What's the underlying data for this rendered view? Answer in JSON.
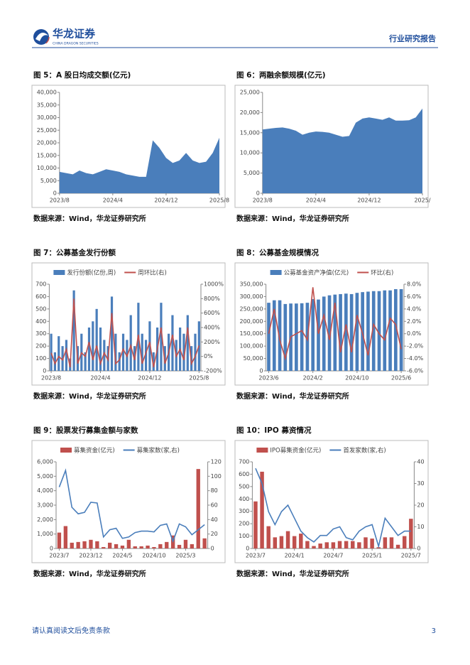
{
  "header": {
    "logo_cn": "华龙证券",
    "logo_en": "CHINA DRAGON SECURITIES",
    "report_type": "行业研究报告"
  },
  "chart_data": [
    {
      "type": "area",
      "title": "图 5：A 股日均成交额(亿元)",
      "source": "数据来源：Wind，华龙证券研究所",
      "color": "#4a7ebb",
      "categories": [
        "2023/8",
        null,
        null,
        null,
        null,
        null,
        null,
        null,
        "2024/4",
        null,
        null,
        null,
        null,
        null,
        null,
        null,
        "2024/12",
        null,
        null,
        null,
        null,
        null,
        null,
        null,
        "2025/8"
      ],
      "values": [
        8500,
        8000,
        7500,
        9000,
        8000,
        7500,
        8500,
        9500,
        9000,
        8500,
        7500,
        7000,
        6500,
        6500,
        21000,
        18000,
        14000,
        12000,
        13000,
        16000,
        13000,
        12000,
        12500,
        16000,
        22000
      ],
      "ylim": [
        0,
        40000
      ],
      "yticks": [
        0,
        {
          "value": 5000,
          "label": "5,000"
        },
        {
          "value": 10000,
          "label": "10,000"
        },
        {
          "value": 15000,
          "label": "15,000"
        },
        {
          "value": 20000,
          "label": "20,000"
        },
        {
          "value": 25000,
          "label": "25,000"
        },
        {
          "value": 30000,
          "label": "30,000"
        },
        {
          "value": 35000,
          "label": "35,000"
        },
        {
          "value": 40000,
          "label": "40,000"
        }
      ]
    },
    {
      "type": "area",
      "title": "图 6：两融余额规模(亿元)",
      "source": "数据来源：Wind，华龙证券研究所",
      "color": "#4a7ebb",
      "categories": [
        "2023/8",
        null,
        null,
        null,
        null,
        null,
        null,
        null,
        "2024/4",
        null,
        null,
        null,
        null,
        null,
        null,
        null,
        "2024/12",
        null,
        null,
        null,
        null,
        null,
        null,
        null,
        "2025/"
      ],
      "values": [
        15800,
        16000,
        16200,
        16300,
        16000,
        15500,
        14500,
        15000,
        15300,
        15200,
        15000,
        14500,
        14000,
        14200,
        17500,
        18500,
        18800,
        18500,
        18200,
        18800,
        18000,
        18000,
        18100,
        18800,
        21000
      ],
      "ylim": [
        0,
        25000
      ],
      "yticks": [
        0,
        {
          "value": 5000,
          "label": "5,000"
        },
        {
          "value": 10000,
          "label": "10,000"
        },
        {
          "value": 15000,
          "label": "15,000"
        },
        {
          "value": 20000,
          "label": "20,000"
        },
        {
          "value": 25000,
          "label": "25,000"
        }
      ]
    },
    {
      "type": "combo",
      "title": "图 7：公募基金发行份额",
      "source": "数据来源：Wind，华龙证券研究所",
      "categories": [
        "2023/8",
        null,
        null,
        null,
        null,
        null,
        null,
        null,
        null,
        null,
        null,
        null,
        null,
        "2024/4",
        null,
        null,
        null,
        null,
        null,
        null,
        null,
        null,
        null,
        null,
        null,
        null,
        "2024/12",
        null,
        null,
        null,
        null,
        null,
        null,
        null,
        null,
        null,
        null,
        null,
        null,
        "2025/8"
      ],
      "series": [
        {
          "name": "发行份额(亿份,周)",
          "type": "bar",
          "color": "#4a7ebb",
          "values": [
            300,
            150,
            280,
            200,
            250,
            100,
            650,
            200,
            300,
            150,
            350,
            400,
            500,
            350,
            250,
            200,
            600,
            300,
            150,
            300,
            250,
            450,
            200,
            550,
            300,
            250,
            400,
            150,
            350,
            550,
            200,
            300,
            450,
            250,
            350,
            300,
            450,
            200,
            300,
            400
          ]
        },
        {
          "name": "周环比(右)",
          "type": "line",
          "axis": "y2",
          "color": "#c0504d",
          "values": [
            50,
            -100,
            0,
            -50,
            100,
            -150,
            800,
            -100,
            50,
            0,
            200,
            -50,
            150,
            -100,
            50,
            -50,
            600,
            -100,
            -50,
            100,
            0,
            150,
            -50,
            300,
            -100,
            50,
            200,
            -150,
            100,
            400,
            -100,
            50,
            300,
            0,
            100,
            -50,
            400,
            -100,
            0,
            150
          ]
        }
      ],
      "ylim": [
        0,
        700
      ],
      "yticks": [
        0,
        100,
        200,
        300,
        400,
        500,
        600,
        700
      ],
      "y2lim": [
        -200,
        1000
      ],
      "y2ticks": [
        {
          "value": -200,
          "label": "-200%"
        },
        {
          "value": 0,
          "label": "0%"
        },
        {
          "value": 200,
          "label": "200%"
        },
        {
          "value": 400,
          "label": "400%"
        },
        {
          "value": 600,
          "label": "600%"
        },
        {
          "value": 800,
          "label": "800%"
        },
        {
          "value": 1000,
          "label": "1000%"
        }
      ]
    },
    {
      "type": "combo",
      "title": "图 8：公募基金规模情况",
      "source": "数据来源：Wind，华龙证券研究所",
      "categories": [
        "2023/6",
        null,
        null,
        null,
        null,
        null,
        null,
        null,
        "2024/2",
        null,
        null,
        null,
        null,
        null,
        null,
        null,
        "2024/10",
        null,
        null,
        null,
        null,
        null,
        null,
        null,
        "2025/6"
      ],
      "series": [
        {
          "name": "公募基金资产净值(亿元)",
          "type": "bar",
          "color": "#4a7ebb",
          "values": [
            275000,
            285000,
            285000,
            270000,
            272000,
            272000,
            273000,
            275000,
            290000,
            288000,
            300000,
            305000,
            308000,
            310000,
            312000,
            310000,
            315000,
            318000,
            320000,
            322000,
            322000,
            325000,
            325000,
            330000,
            330000
          ]
        },
        {
          "name": "环比(右)",
          "type": "line",
          "axis": "y2",
          "color": "#c0504d",
          "values": [
            0,
            4,
            -1,
            -4,
            -0.5,
            0,
            0.5,
            -1,
            7.5,
            0,
            3,
            -1,
            5,
            -3,
            1.5,
            -3,
            3,
            0,
            -3.5,
            1.5,
            0,
            -1,
            2.5,
            1.5,
            -2.5
          ]
        }
      ],
      "ylim": [
        0,
        350000
      ],
      "yticks": [
        0,
        {
          "value": 50000,
          "label": "50,000"
        },
        {
          "value": 100000,
          "label": "100,000"
        },
        {
          "value": 150000,
          "label": "150,000"
        },
        {
          "value": 200000,
          "label": "200,000"
        },
        {
          "value": 250000,
          "label": "250,000"
        },
        {
          "value": 300000,
          "label": "300,000"
        },
        {
          "value": 350000,
          "label": "350,000"
        }
      ],
      "y2lim": [
        -6,
        8
      ],
      "y2ticks": [
        {
          "value": -6,
          "label": "-6.0%"
        },
        {
          "value": -4,
          "label": "-4.0%"
        },
        {
          "value": -2,
          "label": "-2.0%"
        },
        {
          "value": 0,
          "label": "0.0%"
        },
        {
          "value": 2,
          "label": "2.0%"
        },
        {
          "value": 4,
          "label": "4.0%"
        },
        {
          "value": 6,
          "label": "6.0%"
        },
        {
          "value": 8,
          "label": "8.0%"
        }
      ]
    },
    {
      "type": "combo",
      "title": "图 9：股票发行募集金额与家数",
      "source": "数据来源：Wind，华龙证券研究所",
      "categories": [
        "2023/7",
        null,
        null,
        null,
        null,
        "2023/12",
        null,
        null,
        null,
        null,
        "2024/5",
        null,
        null,
        null,
        null,
        "2024/10",
        null,
        null,
        null,
        null,
        "2025/3",
        null,
        null,
        null
      ],
      "series": [
        {
          "name": "募集资金(亿元)",
          "type": "bar",
          "color": "#c0504d",
          "values": [
            1100,
            1550,
            400,
            450,
            500,
            600,
            500,
            100,
            400,
            300,
            200,
            600,
            150,
            150,
            200,
            100,
            300,
            450,
            900,
            250,
            600,
            300,
            5500,
            700
          ]
        },
        {
          "name": "募集家数(家,右)",
          "type": "line",
          "axis": "y2",
          "color": "#4a7ebb",
          "values": [
            85,
            108,
            57,
            48,
            50,
            64,
            63,
            16,
            26,
            28,
            14,
            16,
            22,
            24,
            24,
            23,
            32,
            34,
            10,
            34,
            30,
            19,
            26,
            33
          ]
        }
      ],
      "ylim": [
        0,
        6000
      ],
      "yticks": [
        0,
        {
          "value": 1000,
          "label": "1,000"
        },
        {
          "value": 2000,
          "label": "2,000"
        },
        {
          "value": 3000,
          "label": "3,000"
        },
        {
          "value": 4000,
          "label": "4,000"
        },
        {
          "value": 5000,
          "label": "5,000"
        },
        {
          "value": 6000,
          "label": "6,000"
        }
      ],
      "y2lim": [
        0,
        120
      ],
      "y2ticks": [
        0,
        20,
        40,
        60,
        80,
        100,
        120
      ]
    },
    {
      "type": "combo",
      "title": "图 10：IPO 募资情况",
      "source": "数据来源：Wind，华龙证券研究所",
      "categories": [
        "2023/7",
        null,
        null,
        null,
        null,
        null,
        "2024/1",
        null,
        null,
        null,
        null,
        null,
        "2024/7",
        null,
        null,
        null,
        null,
        null,
        "2025/1",
        null,
        null,
        null,
        null,
        null,
        "2025/7"
      ],
      "series": [
        {
          "name": "IPO募集资金(亿元)",
          "type": "bar",
          "color": "#c0504d",
          "values": [
            380,
            620,
            180,
            90,
            100,
            140,
            100,
            120,
            60,
            20,
            40,
            50,
            50,
            60,
            60,
            60,
            50,
            90,
            80,
            10,
            90,
            90,
            30,
            100,
            240
          ]
        },
        {
          "name": "首发家数(家,右)",
          "type": "line",
          "axis": "y2",
          "color": "#4a7ebb",
          "values": [
            37,
            30,
            17,
            11,
            17,
            20,
            14,
            8,
            5,
            3,
            6,
            6,
            9,
            10,
            5,
            4,
            8,
            10,
            11,
            1,
            14,
            10,
            6,
            8,
            8
          ]
        }
      ],
      "ylim": [
        0,
        700
      ],
      "yticks": [
        0,
        100,
        200,
        300,
        400,
        500,
        600,
        700
      ],
      "y2lim": [
        0,
        40
      ],
      "y2ticks": [
        0,
        10,
        20,
        30,
        40
      ]
    }
  ],
  "footer": {
    "disclaimer": "请认真阅读文后免责条款",
    "page": "3"
  }
}
